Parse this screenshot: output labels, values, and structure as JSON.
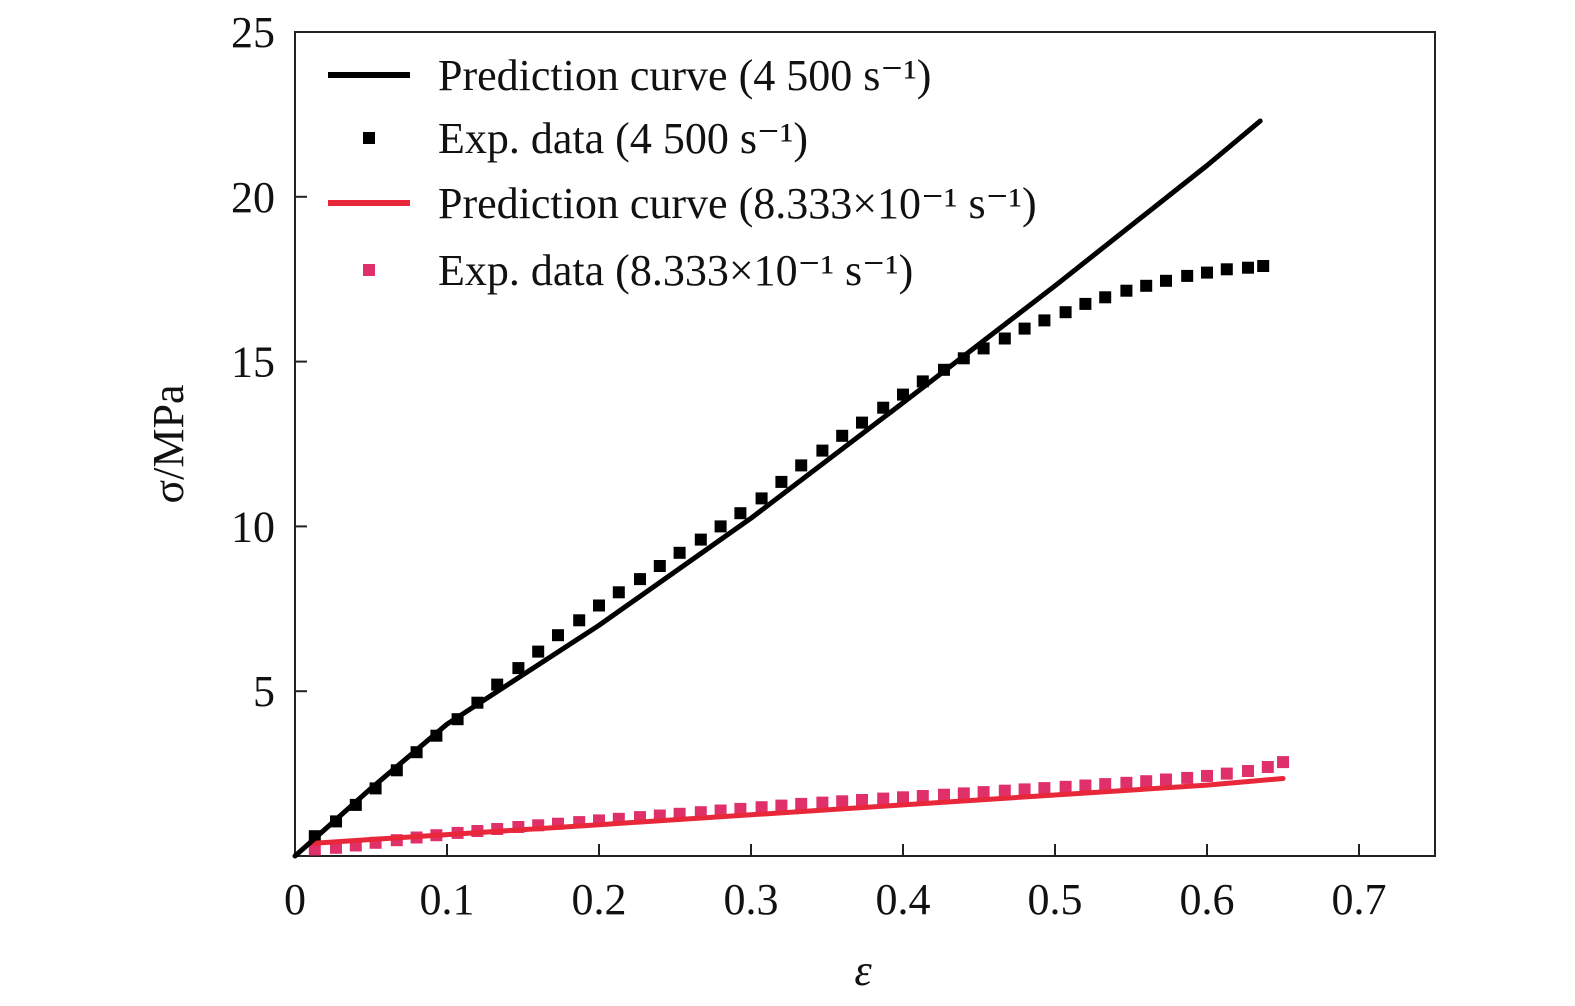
{
  "chart_data": {
    "type": "line",
    "xlabel": "ε",
    "ylabel": "σ/MPa",
    "xlim": [
      0,
      0.75
    ],
    "ylim": [
      0,
      25
    ],
    "x_ticks": [
      "0",
      "0.1",
      "0.2",
      "0.3",
      "0.4",
      "0.5",
      "0.6",
      "0.7"
    ],
    "x_tick_values": [
      0,
      0.1,
      0.2,
      0.3,
      0.4,
      0.5,
      0.6,
      0.7
    ],
    "y_ticks": [
      "5",
      "10",
      "15",
      "20",
      "25"
    ],
    "y_tick_values": [
      5,
      10,
      15,
      20,
      25
    ],
    "grid": false,
    "legend_position": "top-left",
    "series": [
      {
        "name": "Prediction curve (4 500 s⁻¹)",
        "kind": "line",
        "color": "#000000",
        "x": [
          0.0,
          0.05,
          0.1,
          0.2,
          0.3,
          0.4,
          0.5,
          0.6,
          0.635
        ],
        "y": [
          0.0,
          2.05,
          4.0,
          7.0,
          10.25,
          13.75,
          17.3,
          20.95,
          22.3
        ]
      },
      {
        "name": "Exp. data (4 500 s⁻¹)",
        "kind": "markers",
        "color": "#000000",
        "x": [
          0.013,
          0.027,
          0.04,
          0.053,
          0.067,
          0.08,
          0.093,
          0.107,
          0.12,
          0.133,
          0.147,
          0.16,
          0.173,
          0.187,
          0.2,
          0.213,
          0.227,
          0.24,
          0.253,
          0.267,
          0.28,
          0.293,
          0.307,
          0.32,
          0.333,
          0.347,
          0.36,
          0.373,
          0.387,
          0.4,
          0.413,
          0.427,
          0.44,
          0.453,
          0.467,
          0.48,
          0.493,
          0.507,
          0.52,
          0.533,
          0.547,
          0.56,
          0.573,
          0.587,
          0.6,
          0.613,
          0.627,
          0.637
        ],
        "y": [
          0.6,
          1.05,
          1.55,
          2.05,
          2.6,
          3.15,
          3.65,
          4.15,
          4.65,
          5.2,
          5.7,
          6.2,
          6.7,
          7.15,
          7.6,
          8.0,
          8.4,
          8.8,
          9.2,
          9.6,
          10.0,
          10.4,
          10.85,
          11.35,
          11.85,
          12.3,
          12.75,
          13.15,
          13.6,
          14.0,
          14.4,
          14.75,
          15.1,
          15.4,
          15.7,
          16.0,
          16.25,
          16.5,
          16.75,
          16.95,
          17.15,
          17.3,
          17.45,
          17.6,
          17.7,
          17.8,
          17.85,
          17.9
        ]
      },
      {
        "name": "Prediction curve (8.333×10⁻¹ s⁻¹)",
        "kind": "line",
        "color": "#e8273a",
        "x": [
          0.01,
          0.05,
          0.1,
          0.2,
          0.3,
          0.4,
          0.5,
          0.6,
          0.65
        ],
        "y": [
          0.38,
          0.5,
          0.65,
          0.95,
          1.25,
          1.55,
          1.85,
          2.15,
          2.35
        ]
      },
      {
        "name": "Exp. data (8.333×10⁻¹ s⁻¹)",
        "kind": "markers",
        "color": "#e0306a",
        "x": [
          0.013,
          0.027,
          0.04,
          0.053,
          0.067,
          0.08,
          0.093,
          0.107,
          0.12,
          0.133,
          0.147,
          0.16,
          0.173,
          0.187,
          0.2,
          0.213,
          0.227,
          0.24,
          0.253,
          0.267,
          0.28,
          0.293,
          0.307,
          0.32,
          0.333,
          0.347,
          0.36,
          0.373,
          0.387,
          0.4,
          0.413,
          0.427,
          0.44,
          0.453,
          0.467,
          0.48,
          0.493,
          0.507,
          0.52,
          0.533,
          0.547,
          0.56,
          0.573,
          0.587,
          0.6,
          0.613,
          0.627,
          0.64,
          0.65
        ],
        "y": [
          0.2,
          0.25,
          0.32,
          0.4,
          0.48,
          0.56,
          0.63,
          0.7,
          0.76,
          0.82,
          0.88,
          0.93,
          0.98,
          1.03,
          1.08,
          1.13,
          1.18,
          1.23,
          1.28,
          1.33,
          1.38,
          1.43,
          1.48,
          1.53,
          1.58,
          1.62,
          1.66,
          1.7,
          1.74,
          1.78,
          1.82,
          1.86,
          1.9,
          1.94,
          1.98,
          2.02,
          2.06,
          2.1,
          2.14,
          2.18,
          2.22,
          2.27,
          2.32,
          2.37,
          2.43,
          2.5,
          2.58,
          2.7,
          2.85
        ]
      }
    ]
  }
}
